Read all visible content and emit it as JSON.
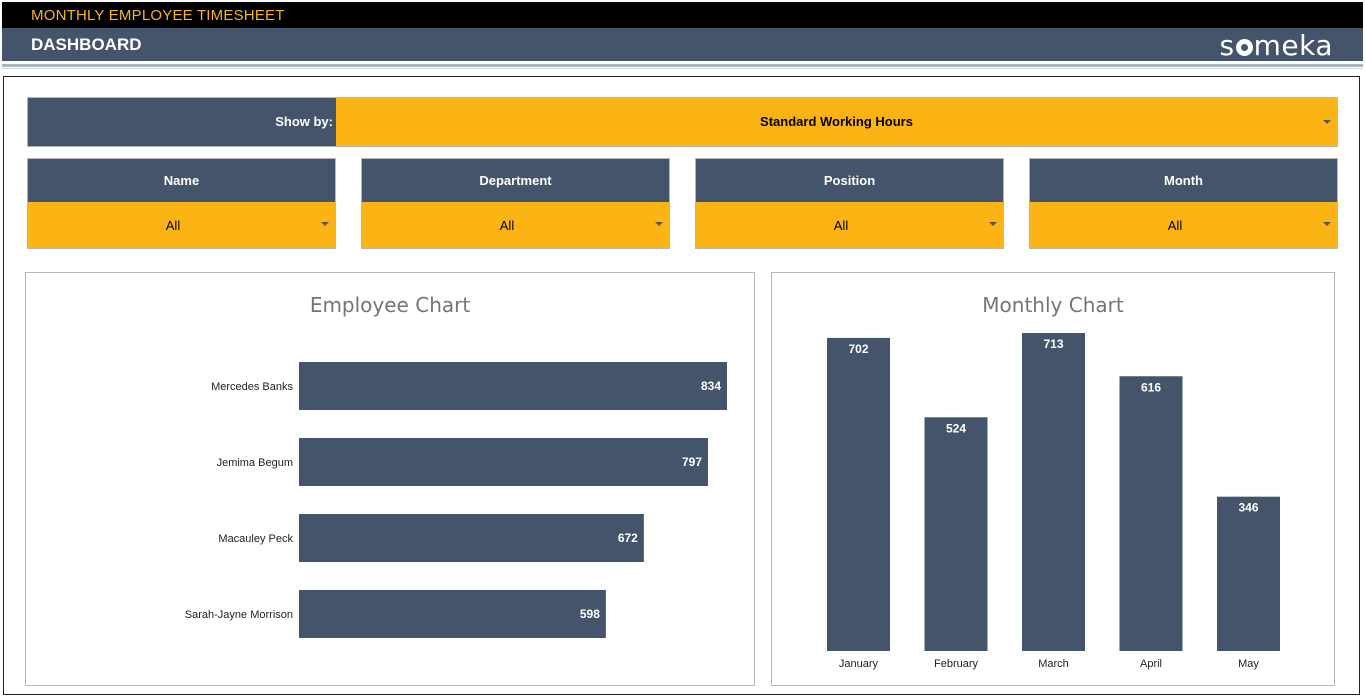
{
  "app": {
    "title": "MONTHLY EMPLOYEE TIMESHEET",
    "page": "DASHBOARD",
    "logo": {
      "before": "s",
      "after": "meka"
    }
  },
  "colors": {
    "navy": "#44546a",
    "gold": "#fbb414",
    "title_gold": "#f5b324"
  },
  "show_by": {
    "label": "Show by:",
    "value": "Standard Working Hours"
  },
  "filters": [
    {
      "label": "Name",
      "value": "All"
    },
    {
      "label": "Department",
      "value": "All"
    },
    {
      "label": "Position",
      "value": "All"
    },
    {
      "label": "Month",
      "value": "All"
    }
  ],
  "chart_data": [
    {
      "type": "bar",
      "orientation": "horizontal",
      "title": "Employee Chart",
      "categories": [
        "Mercedes Banks",
        "Jemima Begum",
        "Macauley Peck",
        "Sarah-Jayne Morrison"
      ],
      "values": [
        834,
        797,
        672,
        598
      ],
      "xlim": [
        0,
        834
      ],
      "grid": false,
      "color": "#44546a"
    },
    {
      "type": "bar",
      "orientation": "vertical",
      "title": "Monthly Chart",
      "categories": [
        "January",
        "February",
        "March",
        "April",
        "May"
      ],
      "values": [
        702,
        524,
        713,
        616,
        346
      ],
      "ylim": [
        0,
        713
      ],
      "grid": false,
      "color": "#44546a"
    }
  ]
}
